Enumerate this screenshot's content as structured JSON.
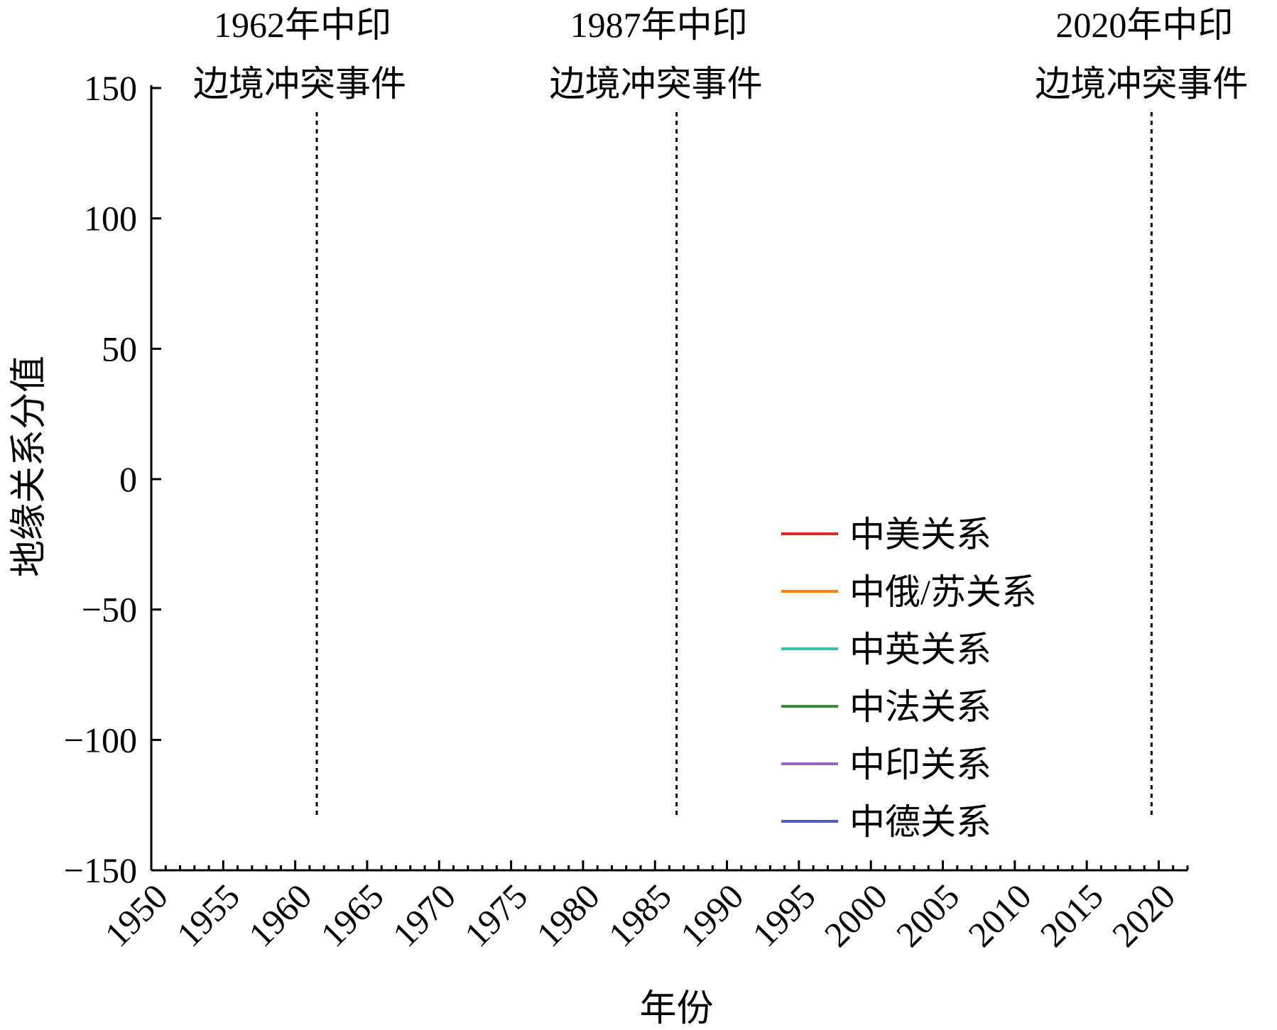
{
  "chart_data": {
    "type": "line",
    "xlabel": "年份",
    "ylabel": "地缘关系分值",
    "xlim": [
      1950,
      2022
    ],
    "ylim": [
      -150,
      150
    ],
    "grid": false,
    "legend_position": "bottom-right",
    "x_ticks": [
      "1950",
      "1955",
      "1960",
      "1965",
      "1970",
      "1975",
      "1980",
      "1985",
      "1990",
      "1995",
      "2000",
      "2005",
      "2010",
      "2015",
      "2020"
    ],
    "y_ticks": [
      "150",
      "100",
      "50",
      "0",
      "−50",
      "−100",
      "−150"
    ],
    "annotations": [
      {
        "x": 1961.5,
        "line1": "1962年中印",
        "line2": "边境冲突事件"
      },
      {
        "x": 1986.5,
        "line1": "1987年中印",
        "line2": "边境冲突事件"
      },
      {
        "x": 2019.5,
        "line1": "2020年中印",
        "line2": "边境冲突事件"
      }
    ],
    "series": [
      {
        "name": "中美关系",
        "color": "#d62728"
      },
      {
        "name": "中俄/苏关系",
        "color": "#ff7f0e"
      },
      {
        "name": "中英关系",
        "color": "#40bfa8"
      },
      {
        "name": "中法关系",
        "color": "#3a8c3a"
      },
      {
        "name": "中印关系",
        "color": "#9467bd"
      },
      {
        "name": "中德关系",
        "color": "#4a5fb5"
      }
    ]
  }
}
